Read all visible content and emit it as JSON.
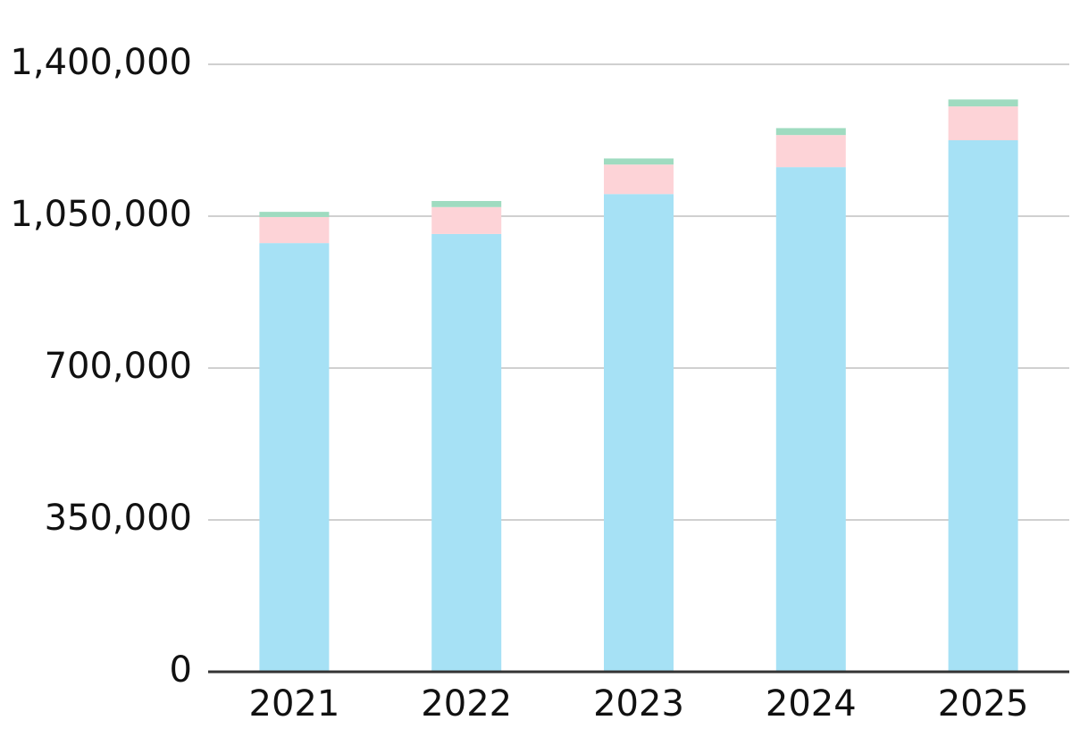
{
  "chart_data": {
    "type": "stacked_bar",
    "categories": [
      "2021",
      "2022",
      "2023",
      "2024",
      "2025"
    ],
    "series": [
      {
        "color": "#a6e1f5",
        "values": [
          988000,
          1009000,
          1101000,
          1163000,
          1225000
        ]
      },
      {
        "color": "#fdd3d7",
        "values": [
          60000,
          62000,
          68000,
          74000,
          78000
        ]
      },
      {
        "color": "#9fdbc0",
        "values": [
          12000,
          14000,
          14000,
          16000,
          16000
        ]
      }
    ],
    "ylim": [
      0,
      1400000
    ],
    "yticks": [
      0,
      {
        "value": 350000,
        "label": "350,000"
      },
      {
        "value": 700000,
        "label": "700,000"
      },
      {
        "value": 1050000,
        "label": "1,050,000"
      },
      {
        "value": 1400000,
        "label": "1,400,000"
      }
    ],
    "grid": true
  }
}
